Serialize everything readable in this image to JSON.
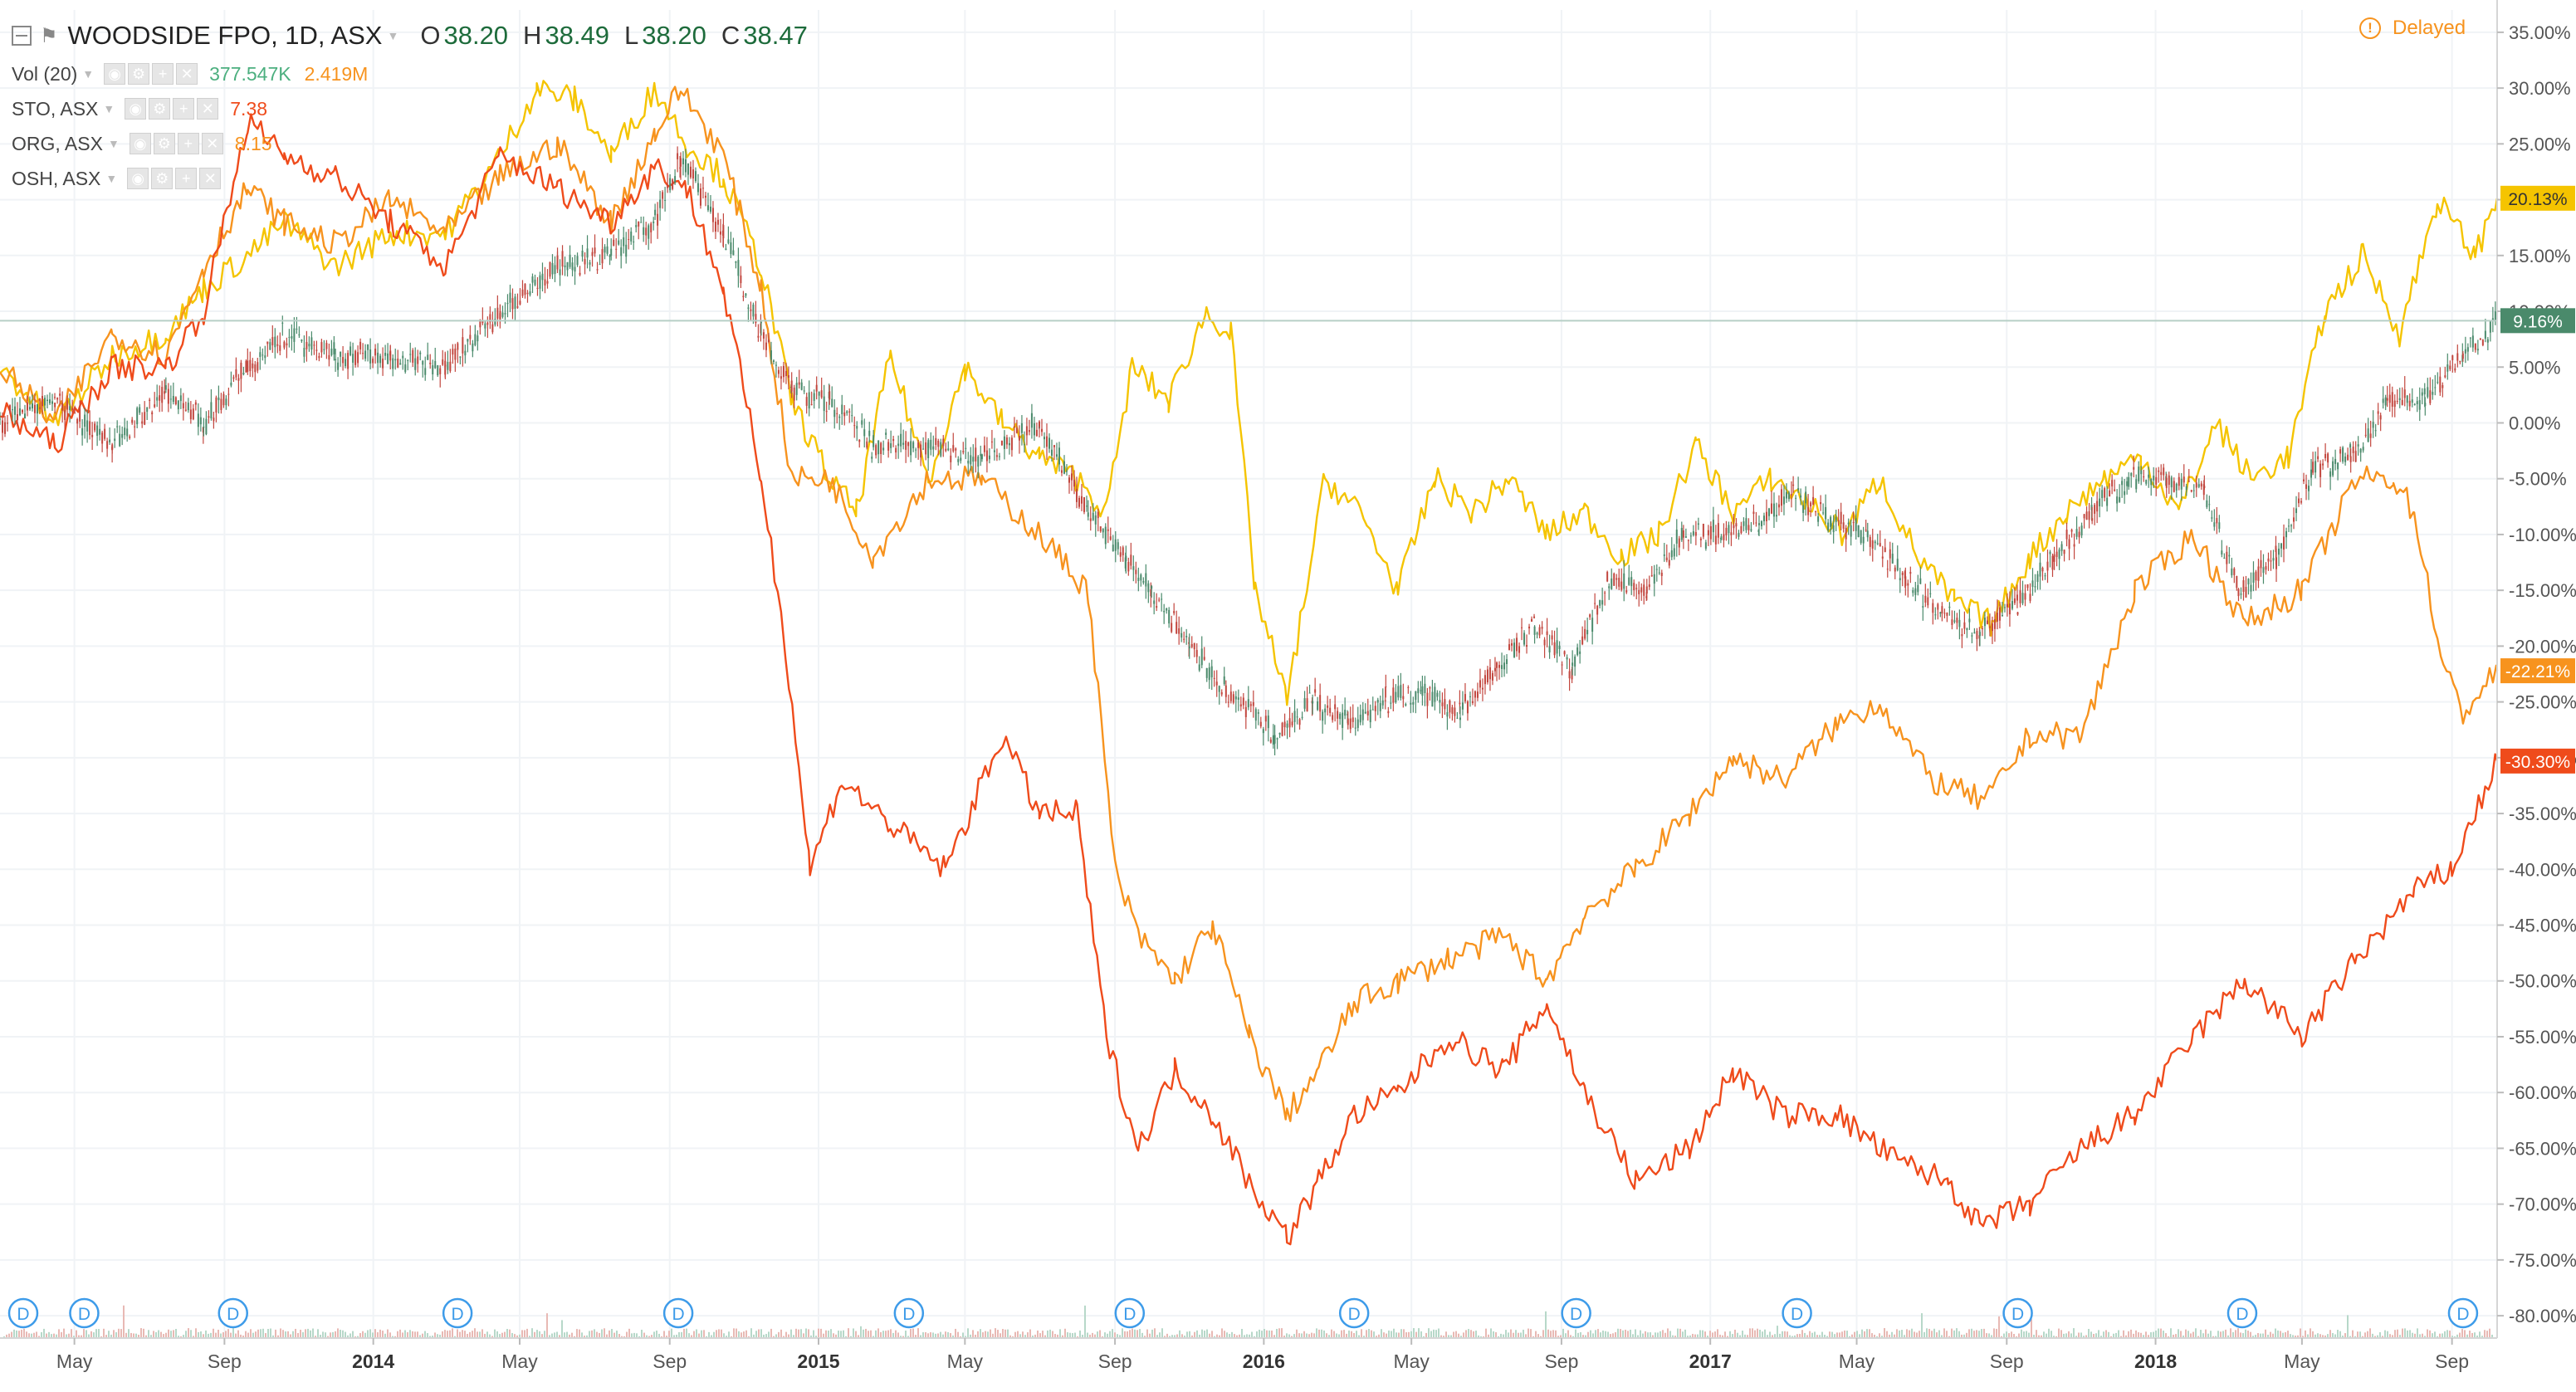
{
  "legend": {
    "symbol": "WOODSIDE FPO, 1D, ASX",
    "ohlc": [
      {
        "key": "O",
        "value": "38.20"
      },
      {
        "key": "H",
        "value": "38.49"
      },
      {
        "key": "L",
        "value": "38.20"
      },
      {
        "key": "C",
        "value": "38.47"
      }
    ],
    "vol_label": "Vol (20)",
    "vol_value": "377.547K",
    "vol_ma": "2.419M",
    "series_rows": [
      {
        "label": "STO, ASX",
        "value": "7.38",
        "color": "#ef4b1b"
      },
      {
        "label": "ORG, ASX",
        "value": "8.15",
        "color": "#f7931e"
      },
      {
        "label": "OSH, ASX",
        "value": "",
        "color": "#f5c400"
      }
    ],
    "icons": [
      "eye-icon",
      "gear-icon",
      "plus-icon",
      "close-icon"
    ]
  },
  "status": {
    "delayed": "Delayed",
    "icon": "exclamation-circle-icon"
  },
  "dividend_marker": "D",
  "colors": {
    "sto": "#ef4b1b",
    "org": "#f7931e",
    "osh": "#f5c400",
    "wpl_up": "#4a8a6b",
    "wpl_down": "#c2463e",
    "grid": "#f0f3f6",
    "axis_text": "#555555",
    "crosshair": "#b7cfc6"
  },
  "chart_data": {
    "type": "line",
    "y_unit": "%",
    "ylim": [
      -82,
      37
    ],
    "x_range": [
      "2013-03-01",
      "2018-10-08"
    ],
    "y_ticks": [
      "35.00%",
      "30.00%",
      "25.00%",
      "20.00%",
      "15.00%",
      "10.00%",
      "5.00%",
      "0.00%",
      "-5.00%",
      "-10.00%",
      "-15.00%",
      "-20.00%",
      "-25.00%",
      "-30.00%",
      "-35.00%",
      "-40.00%",
      "-45.00%",
      "-50.00%",
      "-55.00%",
      "-60.00%",
      "-65.00%",
      "-70.00%",
      "-75.00%",
      "-80.00%"
    ],
    "y_tick_values": [
      35,
      30,
      25,
      20,
      15,
      10,
      5,
      0,
      -5,
      -10,
      -15,
      -20,
      -25,
      -30,
      -35,
      -40,
      -45,
      -50,
      -55,
      -60,
      -65,
      -70,
      -75,
      -80
    ],
    "x_ticks": [
      {
        "label": "May",
        "date": "2013-05-01"
      },
      {
        "label": "Sep",
        "date": "2013-09-01"
      },
      {
        "label": "2014",
        "date": "2014-01-01"
      },
      {
        "label": "May",
        "date": "2014-05-01"
      },
      {
        "label": "Sep",
        "date": "2014-09-01"
      },
      {
        "label": "2015",
        "date": "2015-01-01"
      },
      {
        "label": "May",
        "date": "2015-05-01"
      },
      {
        "label": "Sep",
        "date": "2015-09-01"
      },
      {
        "label": "2016",
        "date": "2016-01-01"
      },
      {
        "label": "May",
        "date": "2016-05-01"
      },
      {
        "label": "Sep",
        "date": "2016-09-01"
      },
      {
        "label": "2017",
        "date": "2017-01-01"
      },
      {
        "label": "May",
        "date": "2017-05-01"
      },
      {
        "label": "Sep",
        "date": "2017-09-01"
      },
      {
        "label": "2018",
        "date": "2018-01-01"
      },
      {
        "label": "May",
        "date": "2018-05-01"
      },
      {
        "label": "Sep",
        "date": "2018-09-01"
      }
    ],
    "dividend_dates": [
      "2013-03-01",
      "2013-04-20",
      "2013-08-20",
      "2014-02-20",
      "2014-08-20",
      "2015-02-25",
      "2015-08-25",
      "2016-02-25",
      "2016-08-25",
      "2017-02-22",
      "2017-08-22",
      "2018-02-22",
      "2018-08-22"
    ],
    "last_value_labels": [
      {
        "series": "OSH",
        "text": "20.13%",
        "value": 20.13,
        "color": "#f5c400"
      },
      {
        "series": "WPL",
        "text": "9.16%",
        "value": 9.16,
        "color": "#4a8a6b"
      },
      {
        "series": "ORG",
        "text": "-22.21%",
        "value": -22.21,
        "color": "#f7931e"
      },
      {
        "series": "STO",
        "text": "-30.30%",
        "value": -30.3,
        "color": "#ef4b1b"
      }
    ],
    "series": [
      {
        "name": "STO, ASX",
        "key": "sto",
        "style": "line",
        "x": [
          "2013-03-01",
          "2013-04-15",
          "2013-06-01",
          "2013-07-15",
          "2013-08-15",
          "2013-09-20",
          "2013-10-20",
          "2013-12-01",
          "2014-01-15",
          "2014-03-01",
          "2014-04-15",
          "2014-06-01",
          "2014-07-15",
          "2014-08-20",
          "2014-09-15",
          "2014-10-15",
          "2014-11-15",
          "2014-12-05",
          "2014-12-25",
          "2015-01-20",
          "2015-03-01",
          "2015-04-15",
          "2015-06-01",
          "2015-07-01",
          "2015-08-01",
          "2015-08-25",
          "2015-09-20",
          "2015-10-20",
          "2015-11-20",
          "2015-12-20",
          "2016-01-20",
          "2016-02-15",
          "2016-03-15",
          "2016-04-20",
          "2016-06-01",
          "2016-07-15",
          "2016-08-20",
          "2016-09-20",
          "2016-11-01",
          "2016-12-15",
          "2017-01-20",
          "2017-03-01",
          "2017-04-15",
          "2017-06-01",
          "2017-07-15",
          "2017-08-10",
          "2017-09-20",
          "2017-11-01",
          "2017-12-15",
          "2018-02-01",
          "2018-03-15",
          "2018-05-01",
          "2018-06-15",
          "2018-08-01",
          "2018-09-01",
          "2018-10-08"
        ],
        "y": [
          1,
          -2,
          5,
          5,
          10,
          27,
          24,
          22,
          18,
          14,
          24,
          21,
          18,
          23,
          21,
          12,
          -5,
          -20,
          -40,
          -32,
          -36,
          -40,
          -28,
          -35,
          -35,
          -55,
          -65,
          -58,
          -62,
          -68,
          -73,
          -68,
          -62,
          -60,
          -55,
          -58,
          -52,
          -60,
          -68,
          -65,
          -58,
          -62,
          -62,
          -66,
          -68,
          -72,
          -70,
          -65,
          -62,
          -55,
          -50,
          -55,
          -48,
          -42,
          -40,
          -30.3
        ]
      },
      {
        "name": "ORG, ASX",
        "key": "org",
        "style": "line",
        "x": [
          "2013-03-01",
          "2013-04-15",
          "2013-06-01",
          "2013-07-15",
          "2013-08-15",
          "2013-09-20",
          "2013-10-20",
          "2013-12-01",
          "2014-01-15",
          "2014-03-01",
          "2014-04-15",
          "2014-06-01",
          "2014-07-15",
          "2014-08-20",
          "2014-09-10",
          "2014-10-15",
          "2014-11-15",
          "2014-12-10",
          "2015-01-10",
          "2015-02-15",
          "2015-04-01",
          "2015-05-15",
          "2015-07-01",
          "2015-08-10",
          "2015-09-01",
          "2015-09-20",
          "2015-10-20",
          "2015-11-20",
          "2015-12-20",
          "2016-01-20",
          "2016-02-15",
          "2016-03-15",
          "2016-04-20",
          "2016-06-01",
          "2016-07-15",
          "2016-08-20",
          "2016-09-20",
          "2016-11-01",
          "2016-12-15",
          "2017-01-20",
          "2017-03-01",
          "2017-04-15",
          "2017-05-20",
          "2017-07-01",
          "2017-08-15",
          "2017-09-20",
          "2017-11-01",
          "2017-12-15",
          "2018-02-01",
          "2018-03-15",
          "2018-05-01",
          "2018-06-15",
          "2018-07-15",
          "2018-08-01",
          "2018-08-25",
          "2018-09-10",
          "2018-10-08"
        ],
        "y": [
          5,
          0,
          8,
          6,
          14,
          21,
          18,
          16,
          20,
          17,
          22,
          25,
          18,
          26,
          30,
          24,
          12,
          -5,
          -5,
          -12,
          -5,
          -5,
          -10,
          -15,
          -40,
          -46,
          -50,
          -45,
          -55,
          -62,
          -58,
          -52,
          -50,
          -48,
          -46,
          -50,
          -44,
          -40,
          -35,
          -30,
          -32,
          -27,
          -25,
          -32,
          -34,
          -28,
          -28,
          -15,
          -10,
          -18,
          -15,
          -5,
          -5,
          -8,
          -22,
          -26,
          -22.21
        ]
      },
      {
        "name": "OSH, ASX",
        "key": "osh",
        "style": "line",
        "x": [
          "2013-03-01",
          "2013-04-15",
          "2013-06-01",
          "2013-07-15",
          "2013-08-15",
          "2013-09-20",
          "2013-10-20",
          "2013-12-01",
          "2014-01-15",
          "2014-03-01",
          "2014-04-15",
          "2014-05-15",
          "2014-06-15",
          "2014-07-15",
          "2014-08-20",
          "2014-09-15",
          "2014-10-15",
          "2014-11-15",
          "2014-12-10",
          "2015-01-10",
          "2015-02-01",
          "2015-03-01",
          "2015-04-01",
          "2015-05-01",
          "2015-06-01",
          "2015-07-01",
          "2015-08-01",
          "2015-08-25",
          "2015-09-15",
          "2015-10-15",
          "2015-11-15",
          "2015-12-05",
          "2015-12-25",
          "2016-01-20",
          "2016-02-20",
          "2016-03-20",
          "2016-04-20",
          "2016-05-20",
          "2016-06-20",
          "2016-07-20",
          "2016-08-20",
          "2016-09-20",
          "2016-10-20",
          "2016-11-20",
          "2016-12-20",
          "2017-01-20",
          "2017-02-20",
          "2017-03-20",
          "2017-04-20",
          "2017-05-20",
          "2017-06-20",
          "2017-07-20",
          "2017-08-20",
          "2017-09-20",
          "2017-10-20",
          "2017-11-20",
          "2017-12-20",
          "2018-01-20",
          "2018-02-20",
          "2018-03-20",
          "2018-04-20",
          "2018-05-20",
          "2018-06-20",
          "2018-07-20",
          "2018-08-20",
          "2018-09-20",
          "2018-10-08"
        ],
        "y": [
          5,
          0,
          6,
          8,
          12,
          15,
          18,
          14,
          17,
          17,
          24,
          30,
          29,
          24,
          30,
          25,
          22,
          14,
          2,
          -5,
          -8,
          6,
          -5,
          5,
          0,
          -3,
          -5,
          -8,
          5,
          2,
          10,
          8,
          -15,
          -25,
          -5,
          -8,
          -15,
          -5,
          -8,
          -5,
          -10,
          -8,
          -12,
          -10,
          -2,
          -8,
          -5,
          -7,
          -10,
          -5,
          -12,
          -16,
          -18,
          -12,
          -8,
          -5,
          -3,
          -8,
          0,
          -5,
          -3,
          10,
          15,
          8,
          20,
          15,
          20.13
        ]
      },
      {
        "name": "WOODSIDE FPO, 1D, ASX",
        "key": "wpl",
        "style": "candles",
        "x": [
          "2013-03-01",
          "2013-04-15",
          "2013-06-01",
          "2013-07-15",
          "2013-08-15",
          "2013-09-20",
          "2013-10-20",
          "2013-12-01",
          "2014-01-15",
          "2014-03-01",
          "2014-04-15",
          "2014-06-01",
          "2014-07-15",
          "2014-08-20",
          "2014-09-10",
          "2014-10-15",
          "2014-11-15",
          "2014-12-10",
          "2015-01-10",
          "2015-02-15",
          "2015-04-01",
          "2015-05-15",
          "2015-07-01",
          "2015-08-10",
          "2015-09-10",
          "2015-10-01",
          "2015-11-01",
          "2015-12-01",
          "2016-01-10",
          "2016-02-10",
          "2016-03-10",
          "2016-04-10",
          "2016-05-10",
          "2016-06-10",
          "2016-07-10",
          "2016-08-10",
          "2016-09-10",
          "2016-10-10",
          "2016-11-10",
          "2016-12-10",
          "2017-01-10",
          "2017-02-10",
          "2017-03-10",
          "2017-04-10",
          "2017-05-10",
          "2017-06-10",
          "2017-07-10",
          "2017-08-10",
          "2017-09-10",
          "2017-10-10",
          "2017-11-10",
          "2017-12-10",
          "2018-01-10",
          "2018-02-10",
          "2018-03-10",
          "2018-04-10",
          "2018-05-10",
          "2018-06-10",
          "2018-07-10",
          "2018-08-10",
          "2018-09-10",
          "2018-10-08"
        ],
        "y": [
          0,
          2,
          -2,
          3,
          0,
          5,
          8,
          6,
          6,
          5,
          10,
          14,
          15,
          18,
          24,
          17,
          8,
          3,
          2,
          -2,
          -2,
          -3,
          0,
          -8,
          -12,
          -15,
          -20,
          -24,
          -28,
          -25,
          -27,
          -25,
          -24,
          -26,
          -22,
          -18,
          -22,
          -14,
          -15,
          -10,
          -10,
          -9,
          -6,
          -9,
          -10,
          -14,
          -17,
          -19,
          -16,
          -12,
          -8,
          -5,
          -5,
          -6,
          -15,
          -12,
          -4,
          -3,
          2,
          2,
          6,
          9.16
        ]
      }
    ]
  }
}
